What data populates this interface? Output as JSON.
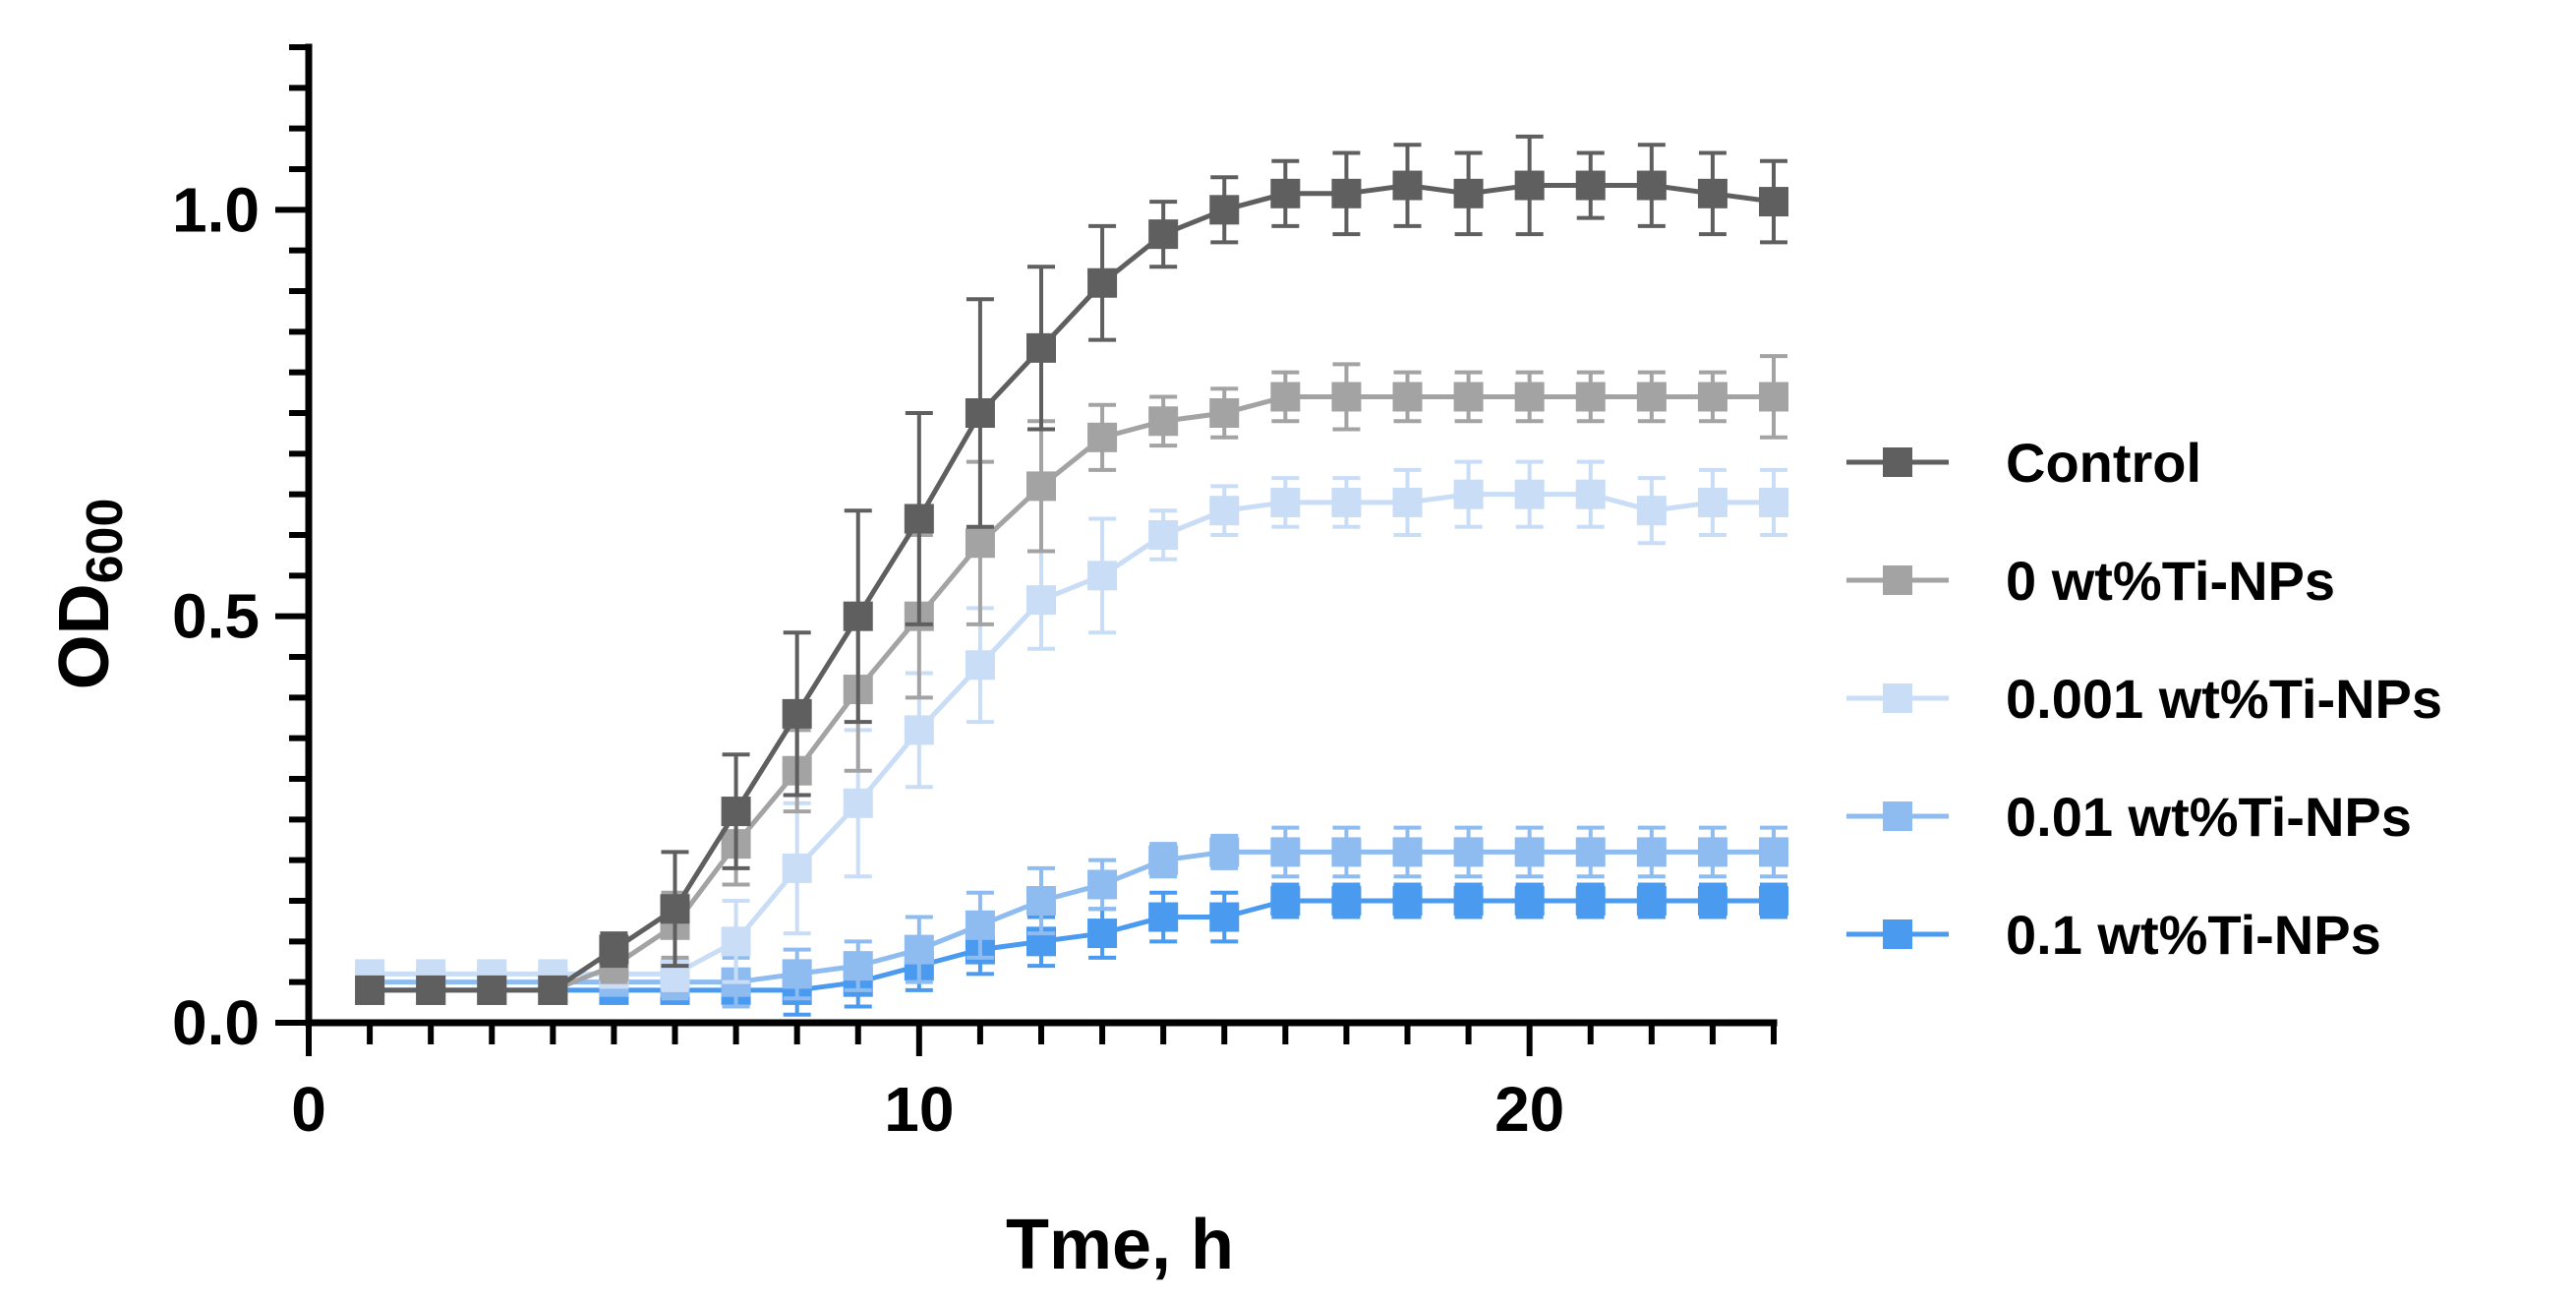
{
  "chart_data": {
    "type": "line",
    "title": "",
    "xlabel": "Tme, h",
    "ylabel_main": "OD",
    "ylabel_sub": "600",
    "xlim": [
      0,
      24
    ],
    "ylim": [
      0,
      1.2
    ],
    "x_ticks": [
      0,
      10,
      20
    ],
    "x_tick_labels": [
      "0",
      "10",
      "20"
    ],
    "y_ticks": [
      0,
      0.5,
      1.0
    ],
    "y_tick_labels": [
      "0.0",
      "0.5",
      "1.0"
    ],
    "legend_position": "right",
    "grid": false,
    "x": [
      1,
      2,
      3,
      4,
      5,
      6,
      7,
      8,
      9,
      10,
      11,
      12,
      13,
      14,
      15,
      16,
      17,
      18,
      19,
      20,
      21,
      22,
      23,
      24
    ],
    "series": [
      {
        "name": "Control",
        "color": "#5f5f5f",
        "values": [
          0.04,
          0.04,
          0.04,
          0.04,
          0.09,
          0.14,
          0.26,
          0.38,
          0.5,
          0.62,
          0.75,
          0.83,
          0.91,
          0.97,
          1.0,
          1.02,
          1.02,
          1.03,
          1.02,
          1.03,
          1.03,
          1.03,
          1.02,
          1.01
        ],
        "errors": [
          0.005,
          0.005,
          0.005,
          0.005,
          0.02,
          0.07,
          0.07,
          0.1,
          0.13,
          0.13,
          0.14,
          0.1,
          0.07,
          0.04,
          0.04,
          0.04,
          0.05,
          0.05,
          0.05,
          0.06,
          0.04,
          0.05,
          0.05,
          0.05
        ]
      },
      {
        "name": "0 wt%Ti-NPs",
        "color": "#a3a3a3",
        "values": [
          0.04,
          0.04,
          0.04,
          0.04,
          0.07,
          0.12,
          0.22,
          0.31,
          0.41,
          0.5,
          0.59,
          0.66,
          0.72,
          0.74,
          0.75,
          0.77,
          0.77,
          0.77,
          0.77,
          0.77,
          0.77,
          0.77,
          0.77,
          0.77
        ],
        "errors": [
          0.005,
          0.005,
          0.005,
          0.005,
          0.02,
          0.04,
          0.05,
          0.05,
          0.1,
          0.1,
          0.1,
          0.08,
          0.04,
          0.03,
          0.03,
          0.03,
          0.04,
          0.03,
          0.03,
          0.03,
          0.03,
          0.03,
          0.03,
          0.05
        ]
      },
      {
        "name": "0.001 wt%Ti-NPs",
        "color": "#c9ddf6",
        "values": [
          0.06,
          0.06,
          0.06,
          0.06,
          0.06,
          0.06,
          0.1,
          0.19,
          0.27,
          0.36,
          0.44,
          0.52,
          0.55,
          0.6,
          0.63,
          0.64,
          0.64,
          0.64,
          0.65,
          0.65,
          0.65,
          0.63,
          0.64,
          0.64
        ],
        "errors": [
          0.01,
          0.01,
          0.01,
          0.01,
          0.01,
          0.02,
          0.05,
          0.08,
          0.09,
          0.07,
          0.07,
          0.06,
          0.07,
          0.03,
          0.03,
          0.03,
          0.03,
          0.04,
          0.04,
          0.04,
          0.04,
          0.04,
          0.04,
          0.04
        ]
      },
      {
        "name": "0.01 wt%Ti-NPs",
        "color": "#8fbcf0",
        "values": [
          0.05,
          0.05,
          0.05,
          0.05,
          0.05,
          0.05,
          0.05,
          0.06,
          0.07,
          0.09,
          0.12,
          0.15,
          0.17,
          0.2,
          0.21,
          0.21,
          0.21,
          0.21,
          0.21,
          0.21,
          0.21,
          0.21,
          0.21,
          0.21
        ],
        "errors": [
          0.005,
          0.005,
          0.005,
          0.005,
          0.01,
          0.02,
          0.03,
          0.03,
          0.03,
          0.04,
          0.04,
          0.04,
          0.03,
          0.02,
          0.02,
          0.03,
          0.03,
          0.03,
          0.03,
          0.03,
          0.03,
          0.03,
          0.03,
          0.03
        ]
      },
      {
        "name": "0.1 wt%Ti-NPs",
        "color": "#4a9af0",
        "values": [
          0.04,
          0.04,
          0.04,
          0.04,
          0.04,
          0.04,
          0.04,
          0.04,
          0.05,
          0.07,
          0.09,
          0.1,
          0.11,
          0.13,
          0.13,
          0.15,
          0.15,
          0.15,
          0.15,
          0.15,
          0.15,
          0.15,
          0.15,
          0.15
        ],
        "errors": [
          0.005,
          0.005,
          0.005,
          0.005,
          0.01,
          0.01,
          0.02,
          0.03,
          0.03,
          0.03,
          0.03,
          0.03,
          0.03,
          0.03,
          0.03,
          0.02,
          0.02,
          0.02,
          0.02,
          0.02,
          0.02,
          0.02,
          0.02,
          0.02
        ]
      }
    ]
  }
}
